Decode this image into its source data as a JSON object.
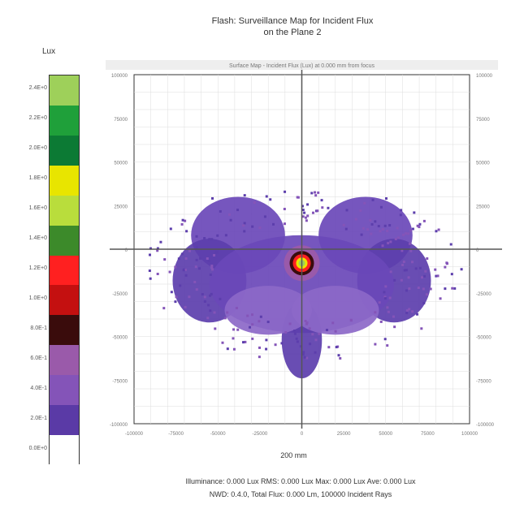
{
  "title_line1": "Flash: Surveillance Map for Incident Flux",
  "title_line2": "on the Plane 2",
  "unit_label": "Lux",
  "subtitle_band": "Surface Map - Incident Flux (Lux) at 0.000 mm from focus",
  "xlabel": "200 mm",
  "footer_line1": "Illuminance: 0.000 Lux RMS: 0.000 Lux Max: 0.000 Lux Ave: 0.000 Lux",
  "footer_line2": "NWD: 0.4.0, Total Flux: 0.000 Lm, 100000 Incident Rays",
  "colors": {
    "background": "#ffffff",
    "grid": "#dddddd",
    "crosshair": "#555555"
  },
  "chart_data": {
    "type": "heatmap",
    "xlim": [
      -100,
      100
    ],
    "ylim": [
      -100,
      100
    ],
    "colorbar": {
      "ticks": [
        "2.4E+0",
        "2.2E+0",
        "2.0E+0",
        "1.8E+0",
        "1.6E+0",
        "1.4E+0",
        "1.2E+0",
        "1.0E+0",
        "8.0E-1",
        "6.0E-1",
        "4.0E-1",
        "2.0E-1",
        "0.0E+0"
      ],
      "colors": [
        "#9ed05a",
        "#1fa03a",
        "#0c7a34",
        "#e8e500",
        "#b9dd3c",
        "#3c8a2a",
        "#ff2020",
        "#c41010",
        "#3a0c0c",
        "#9a5aaa",
        "#8454b8",
        "#5a3aa6",
        "#ffffff"
      ]
    },
    "y_ticks_left": [
      "100000",
      "75000",
      "50000",
      "25000",
      "0",
      "-25000",
      "-50000",
      "-75000",
      "-100000"
    ],
    "y_ticks_right": [
      "100000",
      "75000",
      "50000",
      "25000",
      "0",
      "-25000",
      "-50000",
      "-75000",
      "-100000"
    ],
    "x_ticks": [
      "-100000",
      "-75000",
      "-50000",
      "-25000",
      "0",
      "25000",
      "50000",
      "75000",
      "100000"
    ],
    "peak": {
      "x": 0,
      "y": -8
    },
    "blobs": [
      {
        "cx": -38,
        "cy": 8,
        "rx": 28,
        "ry": 22,
        "color": "#6a48b8"
      },
      {
        "cx": 38,
        "cy": 8,
        "rx": 28,
        "ry": 22,
        "color": "#6a48b8"
      },
      {
        "cx": -55,
        "cy": -18,
        "rx": 22,
        "ry": 24,
        "color": "#5c3eac"
      },
      {
        "cx": 55,
        "cy": -18,
        "rx": 22,
        "ry": 24,
        "color": "#5c3eac"
      },
      {
        "cx": 0,
        "cy": -20,
        "rx": 55,
        "ry": 28,
        "color": "#6a48b8"
      },
      {
        "cx": 0,
        "cy": -52,
        "rx": 12,
        "ry": 22,
        "color": "#5c3eac"
      },
      {
        "cx": -20,
        "cy": -35,
        "rx": 26,
        "ry": 14,
        "color": "#8c68c8"
      },
      {
        "cx": 20,
        "cy": -35,
        "rx": 26,
        "ry": 14,
        "color": "#8c68c8"
      }
    ],
    "core_rings": [
      {
        "r": 22,
        "color": "#9a5aaa"
      },
      {
        "r": 15,
        "color": "#3a0c0c"
      },
      {
        "r": 11,
        "color": "#ff2020"
      },
      {
        "r": 7,
        "color": "#e8e500"
      },
      {
        "r": 4,
        "color": "#9ed05a"
      }
    ]
  }
}
